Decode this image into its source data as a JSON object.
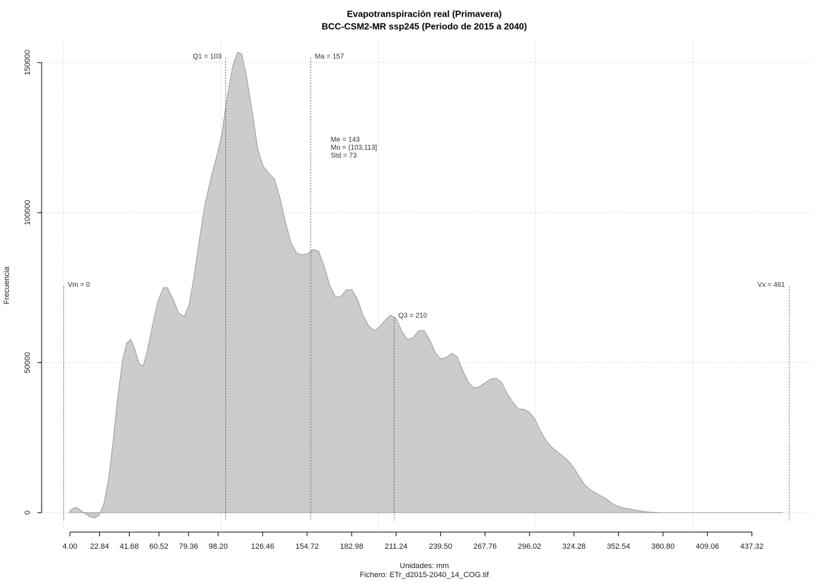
{
  "chart_data": {
    "type": "area",
    "title": "Evapotranspiración real (Primavera)",
    "subtitle": "BCC-CSM2-MR ssp245 (Periodo de 2015 a 2040)",
    "x_label": "Unidades: mm",
    "caption": "Fichero: ETr_d2015-2040_14_COG.tif",
    "y_label": "Frecuencia",
    "color": "#cccccc",
    "x": [
      3.5,
      5.3,
      7.9,
      10.6,
      13.2,
      16.7,
      19.8,
      22.5,
      25.5,
      28.6,
      31.3,
      34.3,
      37.4,
      40.1,
      42.7,
      45.4,
      48,
      50.6,
      53.3,
      56.4,
      59.9,
      63.4,
      66,
      69.6,
      73.1,
      76.6,
      79.7,
      82.8,
      86.3,
      89.8,
      93.8,
      97.3,
      100.4,
      103.9,
      107.4,
      110.5,
      113.2,
      116.2,
      119.8,
      123.3,
      126.8,
      130.3,
      133.9,
      137.4,
      140.9,
      144.4,
      148,
      151.5,
      155,
      158.5,
      162,
      165.6,
      169.1,
      172.6,
      176.1,
      179.7,
      183.2,
      186.7,
      190.2,
      193.7,
      197.3,
      200.8,
      204.3,
      207.8,
      211.4,
      214.9,
      218.4,
      221.9,
      225.4,
      229,
      232.5,
      236,
      239.5,
      243.1,
      246.6,
      250.1,
      253.6,
      257.2,
      260.7,
      264.2,
      267.7,
      271.3,
      274.8,
      278.3,
      281.8,
      285.3,
      288.9,
      292.4,
      295.9,
      299.4,
      303,
      306.5,
      310,
      313.5,
      317,
      320.6,
      324.1,
      327.6,
      331.1,
      334.6,
      338.2,
      341.7,
      345.2,
      348.7,
      352.3,
      355.8,
      360.2,
      364.6,
      371.2,
      380,
      400,
      457
    ],
    "y": [
      0,
      1200,
      1800,
      900,
      -200,
      -1400,
      -1800,
      -900,
      2800,
      11500,
      23000,
      38000,
      50800,
      56500,
      57700,
      54200,
      49600,
      48900,
      54200,
      62300,
      70400,
      75000,
      75000,
      71000,
      66500,
      65300,
      69200,
      78500,
      91200,
      102700,
      112000,
      118800,
      125800,
      138500,
      148800,
      153500,
      152800,
      145400,
      133800,
      121200,
      115400,
      113100,
      111200,
      105000,
      96900,
      90000,
      86500,
      85900,
      86300,
      87700,
      87200,
      81900,
      75700,
      72000,
      72000,
      74300,
      74300,
      71100,
      65800,
      62300,
      60700,
      61900,
      64200,
      65800,
      64600,
      60500,
      57700,
      58200,
      60500,
      60700,
      57700,
      53500,
      51200,
      51700,
      53100,
      51900,
      47300,
      43400,
      41500,
      42000,
      43200,
      44500,
      44800,
      43400,
      39700,
      36900,
      34600,
      34400,
      33500,
      31200,
      27200,
      24000,
      21900,
      20300,
      18900,
      17300,
      15000,
      12000,
      9200,
      7600,
      6500,
      5500,
      4400,
      3000,
      2100,
      1600,
      1200,
      700,
      200,
      0,
      0,
      0
    ],
    "xlim": [
      -14,
      475
    ],
    "ylim": [
      -6500,
      157000
    ],
    "xticks": [
      {
        "value": 4,
        "label": "4.00"
      },
      22.84,
      41.68,
      60.52,
      79.36,
      {
        "value": 98.2,
        "label": "98.20"
      },
      126.46,
      154.72,
      182.98,
      211.24,
      {
        "value": 239.5,
        "label": "239.50"
      },
      267.76,
      296.02,
      324.28,
      352.54,
      {
        "value": 380.8,
        "label": "380.80"
      },
      409.06,
      437.32
    ],
    "yticks": [
      0,
      50000,
      100000,
      150000
    ],
    "xgrid": [
      0,
      100,
      200,
      300,
      400
    ],
    "grid": true,
    "markers": [
      {
        "label": "Vm = 0",
        "value": 0
      },
      {
        "label": "Q1 = 103",
        "value": 103
      },
      {
        "label": "Ma = 157",
        "value": 157
      },
      {
        "label": "Q3 = 210",
        "value": 210
      },
      {
        "label": "Vx = 461",
        "value": 461
      }
    ],
    "stats": [
      "Me = 143",
      "Mo = (103,113]",
      "Std = 73"
    ]
  }
}
